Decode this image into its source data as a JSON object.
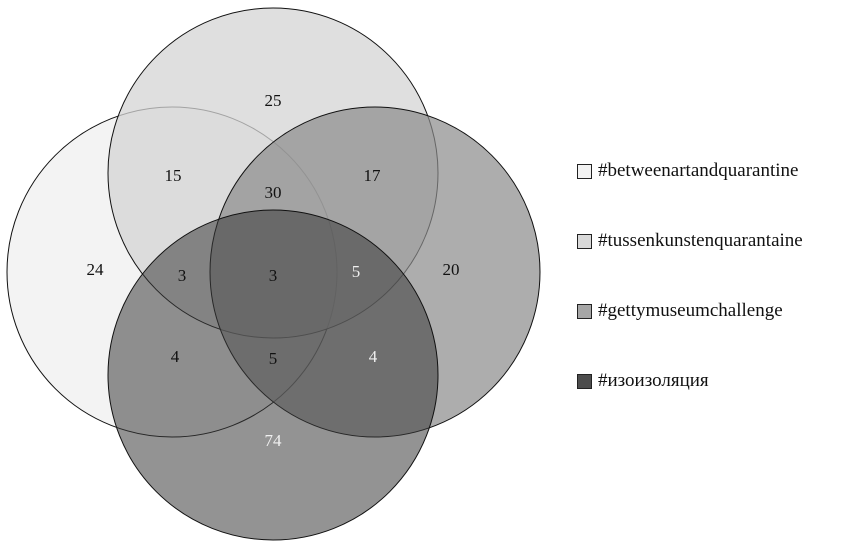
{
  "legend": [
    {
      "label": "#betweenartandquarantine",
      "color": "#f2f2f2"
    },
    {
      "label": "#tussenkunstenquarantaine",
      "color": "#d9d9d9"
    },
    {
      "label": "#gettymuseumchallenge",
      "color": "#a6a6a6"
    },
    {
      "label": "#изоизоляция",
      "color": "#4d4d4d"
    }
  ],
  "regions": [
    {
      "id": "r-a-only",
      "value": "24"
    },
    {
      "id": "r-b-only",
      "value": "25"
    },
    {
      "id": "r-c-only",
      "value": "20"
    },
    {
      "id": "r-d-only",
      "value": "74"
    },
    {
      "id": "r-ab",
      "value": "15"
    },
    {
      "id": "r-bc",
      "value": "17"
    },
    {
      "id": "r-abc",
      "value": "30"
    },
    {
      "id": "r-abd",
      "value": "3"
    },
    {
      "id": "r-abcd",
      "value": "3"
    },
    {
      "id": "r-bcd",
      "value": "5"
    },
    {
      "id": "r-ad",
      "value": "4"
    },
    {
      "id": "r-acd",
      "value": "5"
    },
    {
      "id": "r-cd",
      "value": "4"
    }
  ]
}
